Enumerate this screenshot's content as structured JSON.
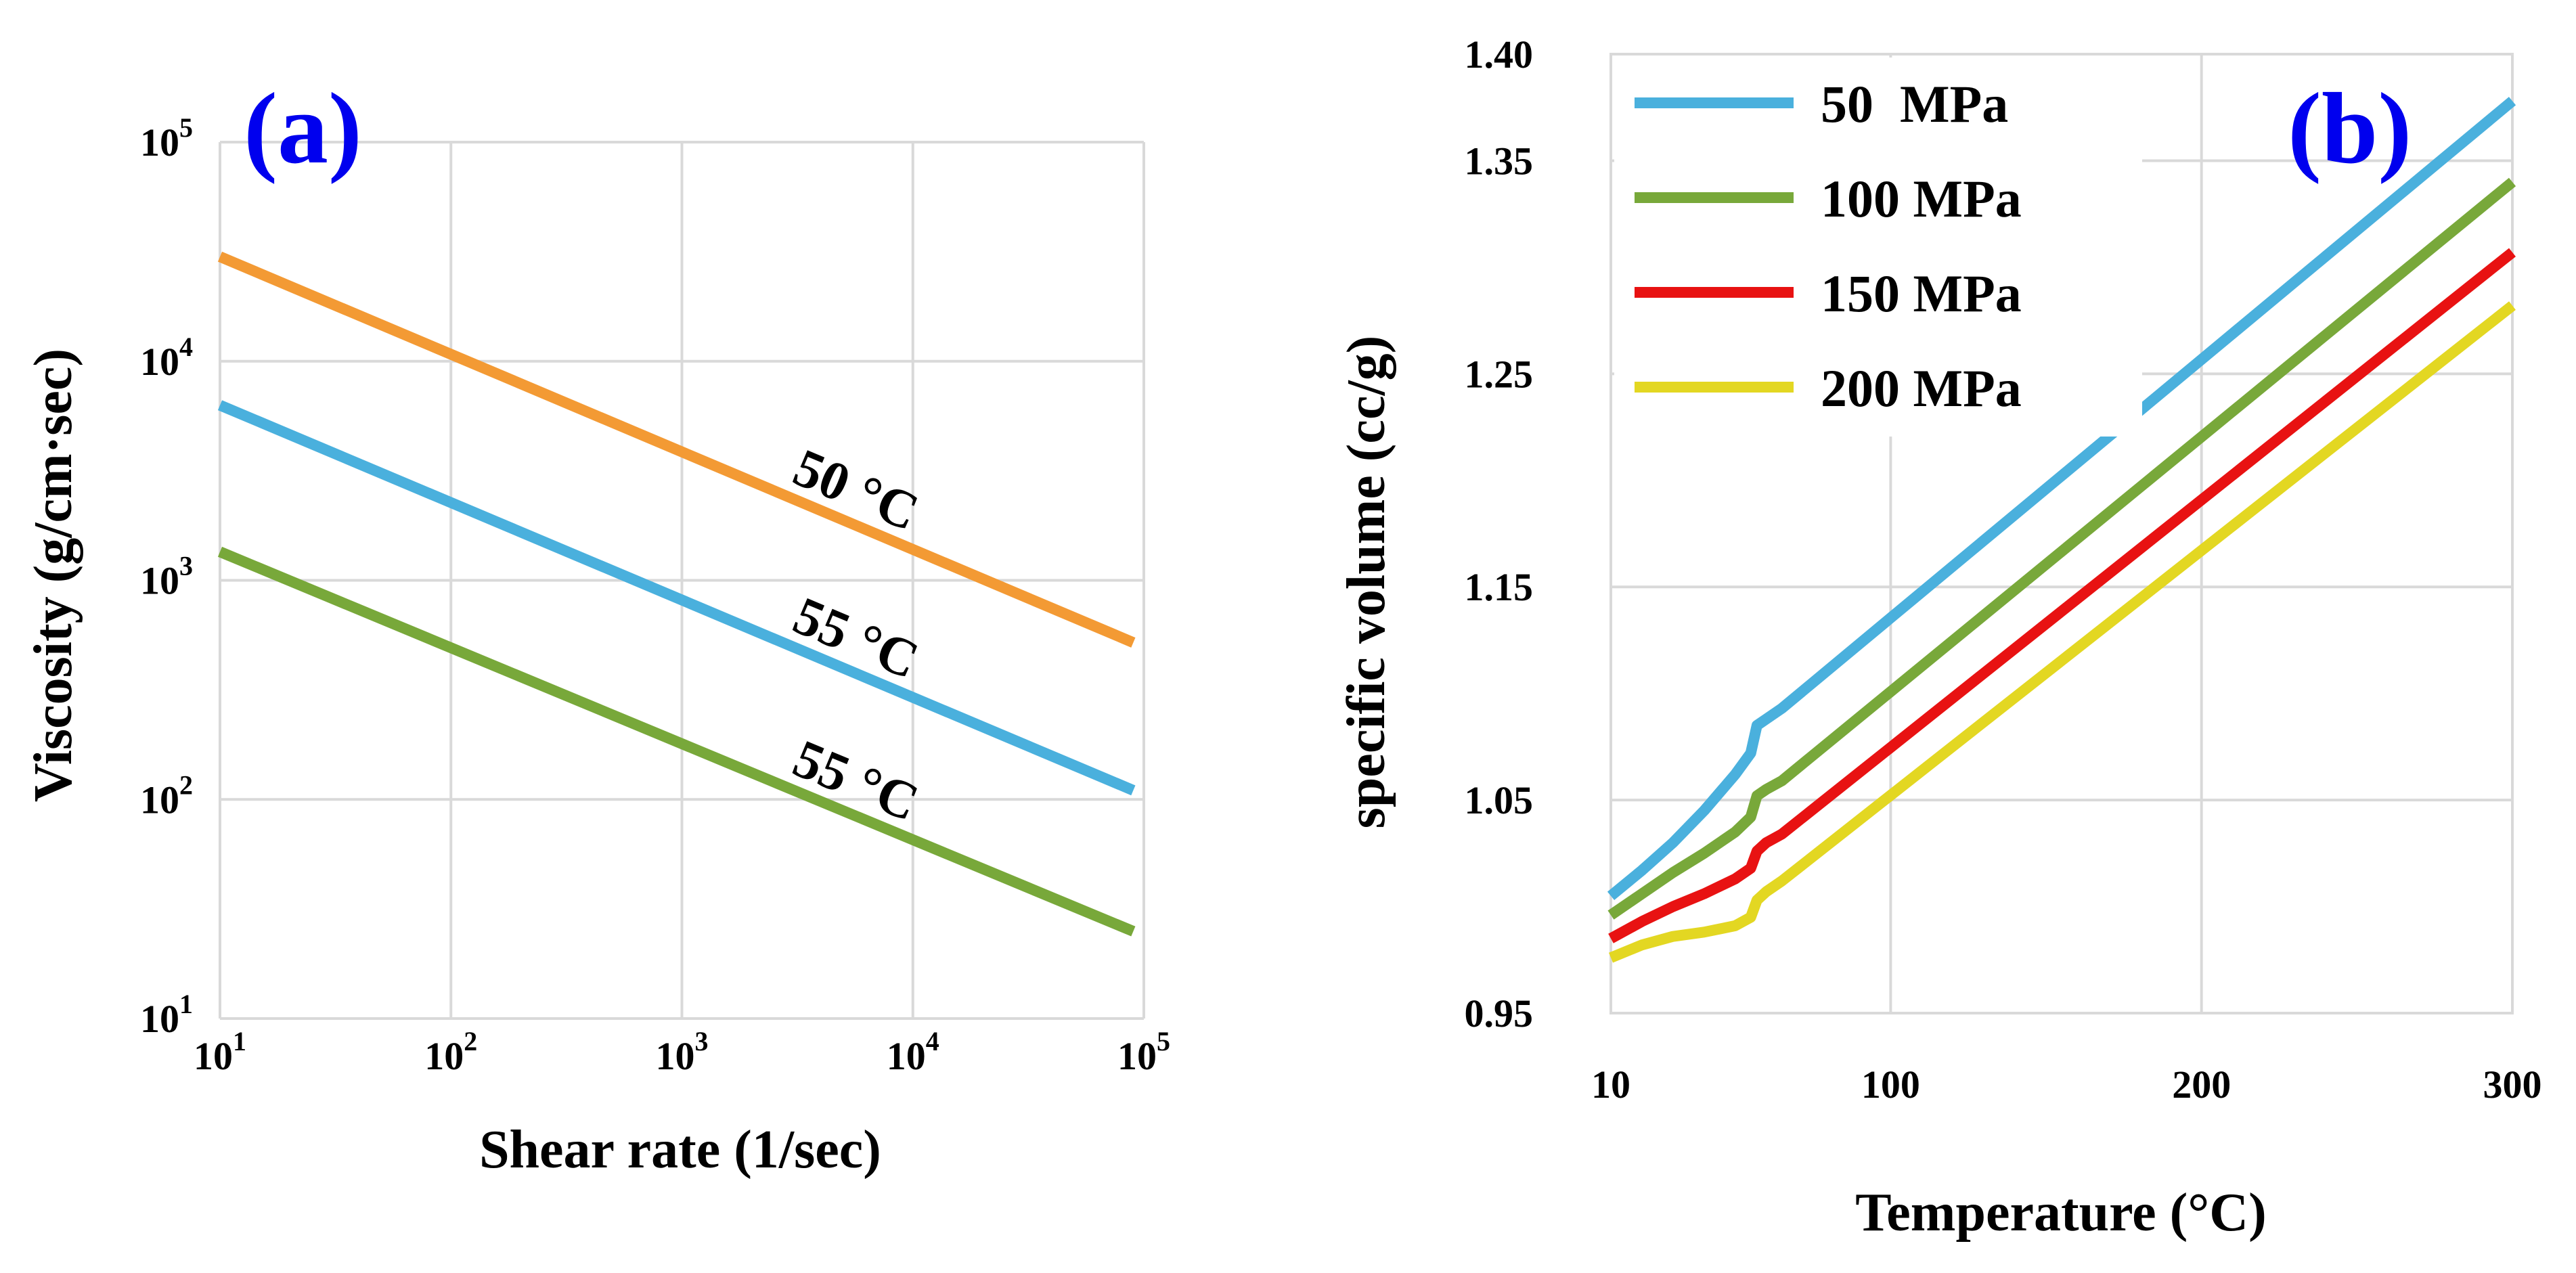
{
  "chart_data": [
    {
      "id": "a",
      "type": "line",
      "panel_label": "(a)",
      "title": "",
      "xlabel": "Shear rate (1/sec)",
      "ylabel": "Viscosity (g/cm·sec)",
      "xscale": "log",
      "yscale": "log",
      "xlim": [
        10,
        100000
      ],
      "ylim": [
        10,
        100000
      ],
      "grid": true,
      "x_ticks": [
        {
          "value": 10,
          "base": "10",
          "exp": "1"
        },
        {
          "value": 100,
          "base": "10",
          "exp": "2"
        },
        {
          "value": 1000,
          "base": "10",
          "exp": "3"
        },
        {
          "value": 10000,
          "base": "10",
          "exp": "4"
        },
        {
          "value": 100000,
          "base": "10",
          "exp": "5"
        }
      ],
      "y_ticks": [
        {
          "value": 10,
          "base": "10",
          "exp": "1"
        },
        {
          "value": 100,
          "base": "10",
          "exp": "2"
        },
        {
          "value": 1000,
          "base": "10",
          "exp": "3"
        },
        {
          "value": 10000,
          "base": "10",
          "exp": "4"
        },
        {
          "value": 100000,
          "base": "10",
          "exp": "5"
        }
      ],
      "series": [
        {
          "name": "50 °C",
          "color": "#f39a34",
          "x": [
            10,
            90000
          ],
          "y": [
            30000,
            520
          ]
        },
        {
          "name": "55 °C",
          "color": "#4ab0dd",
          "x": [
            10,
            90000
          ],
          "y": [
            6300,
            110
          ]
        },
        {
          "name": "55 °C",
          "color": "#78a83a",
          "x": [
            10,
            90000
          ],
          "y": [
            1350,
            25
          ]
        }
      ],
      "annotations": [
        {
          "text": "50 °C",
          "series": 0,
          "at_x": 5000
        },
        {
          "text": "55 °C",
          "series": 1,
          "at_x": 5000
        },
        {
          "text": "55 °C",
          "series": 2,
          "at_x": 5000
        }
      ]
    },
    {
      "id": "b",
      "type": "line",
      "panel_label": "(b)",
      "title": "",
      "xlabel": "Temperature (°C)",
      "ylabel": "specific volume (cc/g)",
      "xlim": [
        10,
        300
      ],
      "ylim": [
        0.95,
        1.4
      ],
      "grid": true,
      "x_ticks": [
        10,
        100,
        200,
        300
      ],
      "y_ticks": [
        "0.95",
        "1.05",
        "1.15",
        "1.25",
        "1.35",
        "1.40"
      ],
      "legend_position": "top-left",
      "series": [
        {
          "name": "50  MPa",
          "color": "#4ab0dd",
          "x": [
            10,
            20,
            30,
            40,
            50,
            55,
            57,
            60,
            65,
            300
          ],
          "y": [
            1.005,
            1.017,
            1.03,
            1.045,
            1.062,
            1.072,
            1.085,
            1.088,
            1.093,
            1.378
          ]
        },
        {
          "name": "100 MPa",
          "color": "#78a83a",
          "x": [
            10,
            20,
            30,
            40,
            50,
            55,
            57,
            60,
            65,
            300
          ],
          "y": [
            0.996,
            1.006,
            1.016,
            1.025,
            1.035,
            1.042,
            1.052,
            1.055,
            1.059,
            1.34
          ]
        },
        {
          "name": "150 MPa",
          "color": "#e81212",
          "x": [
            10,
            20,
            30,
            40,
            50,
            55,
            57,
            60,
            65,
            300
          ],
          "y": [
            0.985,
            0.993,
            1.0,
            1.006,
            1.013,
            1.018,
            1.026,
            1.03,
            1.034,
            1.307
          ]
        },
        {
          "name": "200 MPa",
          "color": "#e3d722",
          "x": [
            10,
            20,
            30,
            40,
            50,
            55,
            57,
            60,
            65,
            300
          ],
          "y": [
            0.976,
            0.982,
            0.986,
            0.988,
            0.991,
            0.995,
            1.003,
            1.007,
            1.012,
            1.282
          ]
        }
      ]
    }
  ]
}
